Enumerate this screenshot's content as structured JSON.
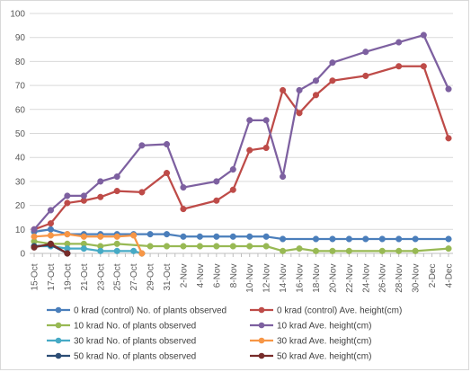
{
  "chart_data": {
    "type": "line",
    "title": "",
    "xlabel": "",
    "ylabel": "",
    "ylim": [
      0,
      100
    ],
    "yticks": [
      0,
      10,
      20,
      30,
      40,
      50,
      60,
      70,
      80,
      90,
      100
    ],
    "grid": "horizontal",
    "legend": "bottom",
    "x": [
      "15-Oct",
      "16-Oct",
      "17-Oct",
      "18-Oct",
      "19-Oct",
      "20-Oct",
      "21-Oct",
      "22-Oct",
      "23-Oct",
      "24-Oct",
      "25-Oct",
      "26-Oct",
      "27-Oct",
      "28-Oct",
      "29-Oct",
      "30-Oct",
      "31-Oct",
      "1-Nov",
      "2-Nov",
      "3-Nov",
      "4-Nov",
      "5-Nov",
      "6-Nov",
      "7-Nov",
      "8-Nov",
      "9-Nov",
      "10-Nov",
      "11-Nov",
      "12-Nov",
      "13-Nov",
      "14-Nov",
      "15-Nov",
      "16-Nov",
      "17-Nov",
      "18-Nov",
      "19-Nov",
      "20-Nov",
      "21-Nov",
      "22-Nov",
      "23-Nov",
      "24-Nov",
      "25-Nov",
      "26-Nov",
      "27-Nov",
      "28-Nov",
      "29-Nov",
      "30-Nov",
      "1-Dec",
      "2-Dec",
      "3-Dec",
      "4-Dec"
    ],
    "xtick_labels": [
      "15-Oct",
      "17-Oct",
      "19-Oct",
      "21-Oct",
      "23-Oct",
      "25-Oct",
      "27-Oct",
      "29-Oct",
      "31-Oct",
      "2-Nov",
      "4-Nov",
      "6-Nov",
      "8-Nov",
      "10-Nov",
      "12-Nov",
      "14-Nov",
      "16-Nov",
      "18-Nov",
      "20-Nov",
      "22-Nov",
      "24-Nov",
      "26-Nov",
      "28-Nov",
      "30-Nov",
      "2-Dec",
      "4-Dec"
    ],
    "series": [
      {
        "name": "0 krad (control) No. of plants observed",
        "color": "#4a7ebb",
        "points": [
          [
            "15-Oct",
            9
          ],
          [
            "17-Oct",
            10
          ],
          [
            "19-Oct",
            8
          ],
          [
            "21-Oct",
            8
          ],
          [
            "23-Oct",
            8
          ],
          [
            "25-Oct",
            8
          ],
          [
            "27-Oct",
            8
          ],
          [
            "29-Oct",
            8
          ],
          [
            "31-Oct",
            8
          ],
          [
            "2-Nov",
            7
          ],
          [
            "4-Nov",
            7
          ],
          [
            "6-Nov",
            7
          ],
          [
            "8-Nov",
            7
          ],
          [
            "10-Nov",
            7
          ],
          [
            "12-Nov",
            7
          ],
          [
            "14-Nov",
            6
          ],
          [
            "18-Nov",
            6
          ],
          [
            "20-Nov",
            6
          ],
          [
            "22-Nov",
            6
          ],
          [
            "24-Nov",
            6
          ],
          [
            "26-Nov",
            6
          ],
          [
            "28-Nov",
            6
          ],
          [
            "30-Nov",
            6
          ],
          [
            "4-Dec",
            6
          ]
        ]
      },
      {
        "name": "0 krad (control) Ave. height(cm)",
        "color": "#be4b48",
        "points": [
          [
            "15-Oct",
            10
          ],
          [
            "17-Oct",
            12.5
          ],
          [
            "19-Oct",
            21
          ],
          [
            "21-Oct",
            22
          ],
          [
            "23-Oct",
            23.5
          ],
          [
            "25-Oct",
            26
          ],
          [
            "28-Oct",
            25.5
          ],
          [
            "31-Oct",
            33.5
          ],
          [
            "2-Nov",
            18.5
          ],
          [
            "6-Nov",
            22
          ],
          [
            "8-Nov",
            26.5
          ],
          [
            "10-Nov",
            43
          ],
          [
            "12-Nov",
            44
          ],
          [
            "14-Nov",
            68
          ],
          [
            "16-Nov",
            58.5
          ],
          [
            "18-Nov",
            66
          ],
          [
            "20-Nov",
            72
          ],
          [
            "24-Nov",
            74
          ],
          [
            "28-Nov",
            78
          ],
          [
            "1-Dec",
            78
          ],
          [
            "4-Dec",
            48
          ]
        ]
      },
      {
        "name": "10 krad No. of plants observed",
        "color": "#98b954",
        "points": [
          [
            "15-Oct",
            5
          ],
          [
            "17-Oct",
            4
          ],
          [
            "19-Oct",
            4
          ],
          [
            "21-Oct",
            4
          ],
          [
            "23-Oct",
            3
          ],
          [
            "25-Oct",
            4
          ],
          [
            "29-Oct",
            3
          ],
          [
            "31-Oct",
            3
          ],
          [
            "2-Nov",
            3
          ],
          [
            "4-Nov",
            3
          ],
          [
            "6-Nov",
            3
          ],
          [
            "8-Nov",
            3
          ],
          [
            "10-Nov",
            3
          ],
          [
            "12-Nov",
            3
          ],
          [
            "14-Nov",
            1
          ],
          [
            "16-Nov",
            2
          ],
          [
            "18-Nov",
            1
          ],
          [
            "20-Nov",
            1
          ],
          [
            "22-Nov",
            1
          ],
          [
            "26-Nov",
            1
          ],
          [
            "28-Nov",
            1
          ],
          [
            "30-Nov",
            1
          ],
          [
            "4-Dec",
            2
          ]
        ]
      },
      {
        "name": "10 krad Ave. height(cm)",
        "color": "#7d60a0",
        "points": [
          [
            "15-Oct",
            10
          ],
          [
            "17-Oct",
            18
          ],
          [
            "19-Oct",
            24
          ],
          [
            "21-Oct",
            24
          ],
          [
            "23-Oct",
            30
          ],
          [
            "25-Oct",
            32
          ],
          [
            "28-Oct",
            45
          ],
          [
            "31-Oct",
            45.5
          ],
          [
            "2-Nov",
            27.5
          ],
          [
            "6-Nov",
            30
          ],
          [
            "8-Nov",
            35
          ],
          [
            "10-Nov",
            55.5
          ],
          [
            "12-Nov",
            55.5
          ],
          [
            "14-Nov",
            32
          ],
          [
            "16-Nov",
            68
          ],
          [
            "18-Nov",
            72
          ],
          [
            "20-Nov",
            79.5
          ],
          [
            "24-Nov",
            84
          ],
          [
            "28-Nov",
            88
          ],
          [
            "1-Dec",
            91
          ],
          [
            "4-Dec",
            68.5
          ]
        ]
      },
      {
        "name": "30 krad No. of plants observed",
        "color": "#46aac5",
        "points": [
          [
            "15-Oct",
            3
          ],
          [
            "17-Oct",
            3
          ],
          [
            "19-Oct",
            2
          ],
          [
            "21-Oct",
            2
          ],
          [
            "23-Oct",
            1
          ],
          [
            "25-Oct",
            1
          ],
          [
            "27-Oct",
            1
          ],
          [
            "28-Oct",
            0
          ]
        ]
      },
      {
        "name": "30 krad Ave. height(cm)",
        "color": "#f79646",
        "points": [
          [
            "15-Oct",
            7
          ],
          [
            "17-Oct",
            7.5
          ],
          [
            "19-Oct",
            8
          ],
          [
            "21-Oct",
            7
          ],
          [
            "23-Oct",
            7
          ],
          [
            "25-Oct",
            7
          ],
          [
            "27-Oct",
            7.5
          ],
          [
            "28-Oct",
            0
          ]
        ]
      },
      {
        "name": "50 krad No. of plants observed",
        "color": "#2c4d75",
        "points": [
          [
            "15-Oct",
            3
          ],
          [
            "17-Oct",
            3.5
          ],
          [
            "19-Oct",
            0
          ]
        ]
      },
      {
        "name": "50 krad Ave. height(cm)",
        "color": "#772c2a",
        "points": [
          [
            "15-Oct",
            2.5
          ],
          [
            "17-Oct",
            4
          ],
          [
            "19-Oct",
            0
          ]
        ]
      }
    ]
  }
}
